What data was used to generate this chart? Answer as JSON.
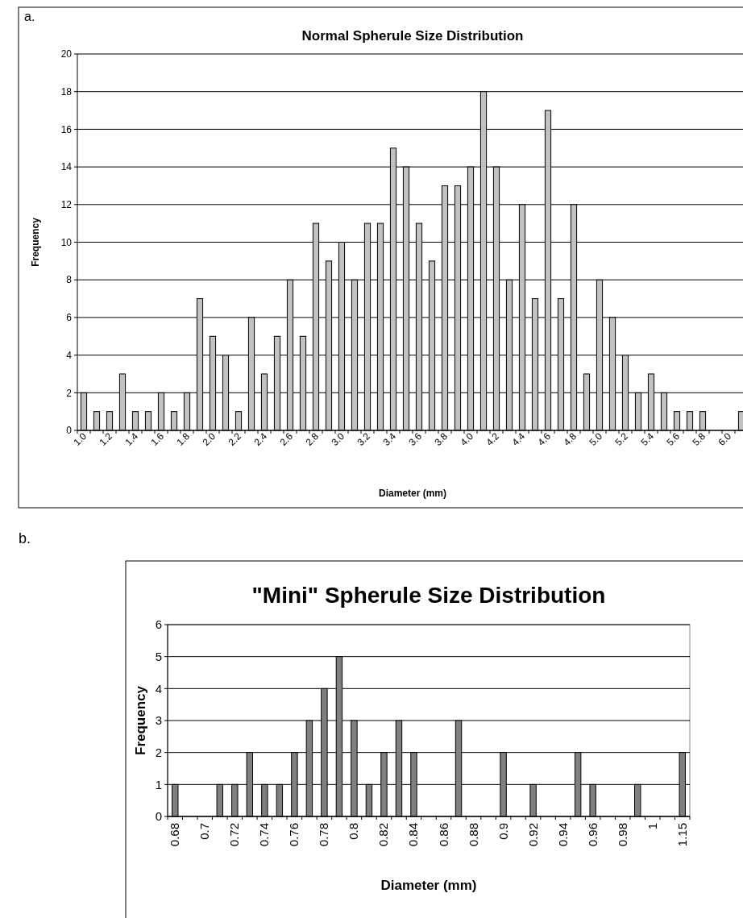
{
  "chart_data": [
    {
      "type": "bar",
      "title": "Normal Spherule Size Distribution",
      "xlabel": "Diameter (mm)",
      "ylabel": "Frequency",
      "annotations": [
        "a."
      ],
      "categories": [
        "1.0",
        null,
        "1.2",
        null,
        "1.4",
        null,
        "1.6",
        null,
        "1.8",
        null,
        "2.0",
        null,
        "2.2",
        null,
        "2.4",
        null,
        "2.6",
        null,
        "2.8",
        null,
        "3.0",
        null,
        "3.2",
        null,
        "3.4",
        null,
        "3.6",
        null,
        "3.8",
        null,
        "4.0",
        null,
        "4.2",
        null,
        "4.4",
        null,
        "4.6",
        null,
        "4.8",
        null,
        "5.0",
        null,
        "5.2",
        null,
        "5.4",
        null,
        "5.6",
        null,
        "5.8",
        null,
        "6.0",
        null
      ],
      "values": [
        2,
        1,
        1,
        3,
        1,
        1,
        2,
        1,
        2,
        7,
        5,
        4,
        1,
        6,
        3,
        5,
        8,
        5,
        11,
        9,
        10,
        8,
        11,
        11,
        15,
        14,
        11,
        9,
        13,
        13,
        14,
        18,
        14,
        8,
        12,
        7,
        17,
        7,
        12,
        3,
        8,
        6,
        4,
        2,
        3,
        2,
        1,
        1,
        1,
        0,
        0,
        1
      ],
      "color": "#c0c0c0",
      "ylim": [
        0,
        20
      ],
      "yticks": [
        0,
        2,
        4,
        6,
        8,
        10,
        12,
        14,
        16,
        18,
        20
      ],
      "grid": "y"
    },
    {
      "type": "bar",
      "title": "\"Mini\" Spherule Size Distribution",
      "xlabel": "Diameter (mm)",
      "ylabel": "Frequency",
      "annotations": [
        "b."
      ],
      "categories": [
        "0.68",
        null,
        "0.7",
        null,
        "0.72",
        null,
        "0.74",
        null,
        "0.76",
        null,
        "0.78",
        null,
        "0.8",
        null,
        "0.82",
        null,
        "0.84",
        null,
        "0.86",
        null,
        "0.88",
        null,
        "0.9",
        null,
        "0.92",
        null,
        "0.94",
        null,
        "0.96",
        null,
        "0.98",
        null,
        "1",
        null,
        "1.15"
      ],
      "values": [
        1,
        0,
        0,
        1,
        1,
        2,
        1,
        1,
        2,
        3,
        4,
        5,
        3,
        1,
        2,
        3,
        2,
        0,
        0,
        3,
        0,
        0,
        2,
        0,
        1,
        0,
        0,
        2,
        1,
        0,
        0,
        1,
        0,
        0,
        2
      ],
      "color": "#808080",
      "ylim": [
        0,
        6
      ],
      "yticks": [
        0,
        1,
        2,
        3,
        4,
        5,
        6
      ],
      "grid": "y"
    }
  ]
}
